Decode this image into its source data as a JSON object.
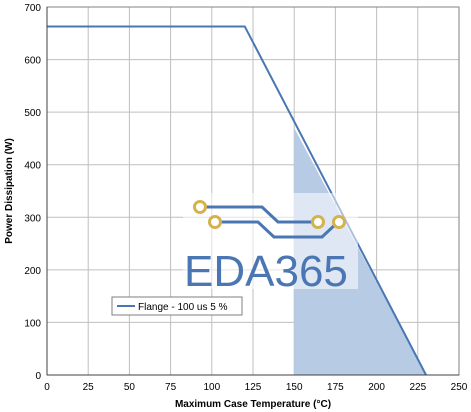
{
  "chart_data": {
    "type": "line",
    "xlabel": "Maximum Case Temperature (°C)",
    "ylabel": "Power Dissipation (W)",
    "xlim": [
      0,
      250
    ],
    "ylim": [
      0,
      700
    ],
    "xticks": [
      0,
      25,
      50,
      75,
      100,
      125,
      150,
      175,
      200,
      225,
      250
    ],
    "yticks": [
      0,
      100,
      200,
      300,
      400,
      500,
      600,
      700
    ],
    "grid": true,
    "legend_position": "lower-left",
    "series": [
      {
        "name": "Flange - 100 us 5 %",
        "color": "#4a77b3",
        "x": [
          0,
          120,
          230
        ],
        "y": [
          663,
          663,
          0
        ]
      }
    ],
    "shaded_region": {
      "color": "#b7cbe4",
      "x": [
        150,
        150,
        230
      ],
      "y": [
        0,
        470,
        0
      ]
    },
    "watermark": {
      "text": "EDA365",
      "color": "#4a77b3",
      "accent_color": "#d4b24c"
    }
  }
}
